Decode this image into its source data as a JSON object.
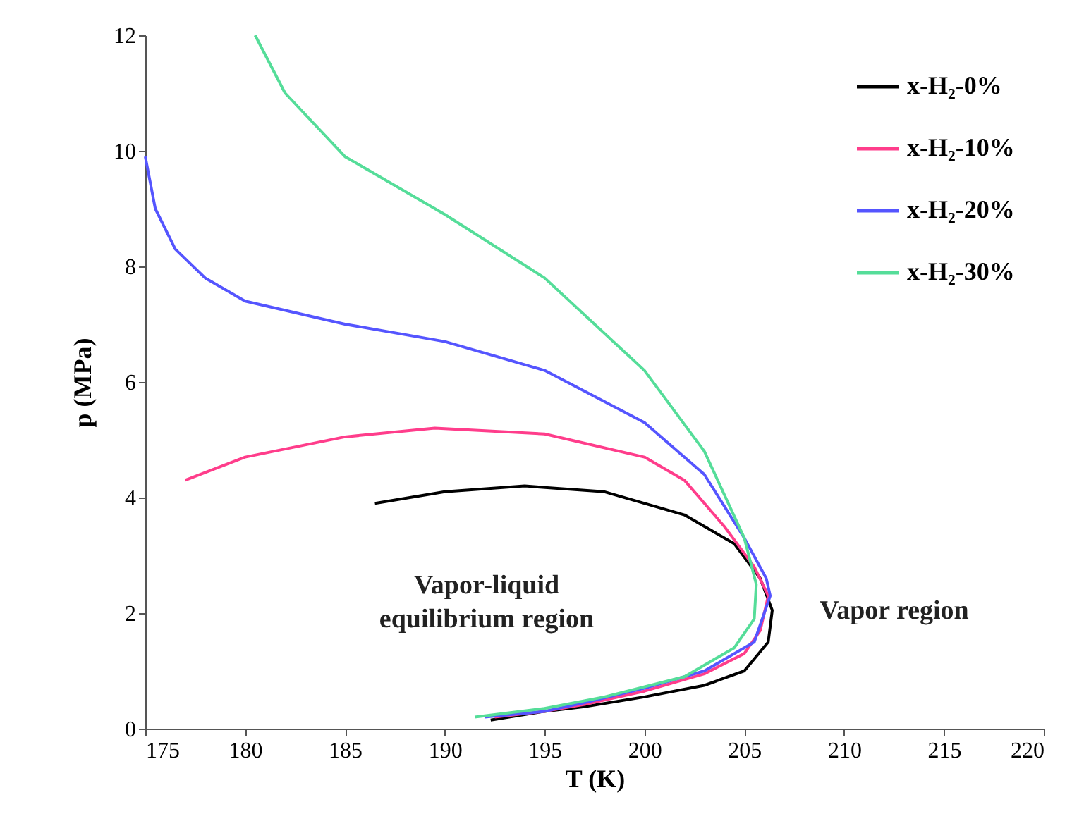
{
  "chart_data": {
    "type": "line",
    "xlabel": "T (K)",
    "ylabel": "p (MPa)",
    "xlim": [
      175,
      220
    ],
    "xticks": [
      175,
      180,
      185,
      190,
      195,
      200,
      205,
      210,
      215,
      220
    ],
    "ylim": [
      0,
      12
    ],
    "yticks": [
      0,
      2,
      4,
      6,
      8,
      10,
      12
    ],
    "grid": false,
    "legend": "top right",
    "line_style": "solid",
    "marker": "none",
    "annotations": [
      "Vapor-liquid\nequilibrium region",
      "Vapor region"
    ],
    "series": [
      {
        "name": "x-H₂-0%",
        "color": "#000000",
        "x": [
          186.5,
          190,
          194,
          198,
          202,
          204.5,
          205.8,
          206.4,
          206.2,
          205,
          203,
          200,
          197,
          195,
          192.3
        ],
        "values": [
          3.9,
          4.1,
          4.2,
          4.1,
          3.7,
          3.2,
          2.6,
          2.05,
          1.5,
          1.0,
          0.75,
          0.55,
          0.38,
          0.3,
          0.15
        ]
      },
      {
        "name": "x-H₂-10%",
        "color": "#ff3d8b",
        "x": [
          177,
          180,
          185,
          189.5,
          195,
          200,
          202,
          204,
          205.5,
          206.2,
          205.8,
          205,
          203,
          200,
          197,
          195,
          192.5
        ],
        "values": [
          4.3,
          4.7,
          5.05,
          5.2,
          5.1,
          4.7,
          4.3,
          3.5,
          2.8,
          2.3,
          1.7,
          1.3,
          0.95,
          0.65,
          0.42,
          0.3,
          0.2
        ]
      },
      {
        "name": "x-H₂-20%",
        "color": "#5555ff",
        "x": [
          175,
          175.5,
          176.5,
          178,
          180,
          185,
          190,
          195,
          200,
          203,
          205,
          206.1,
          206.3,
          205.5,
          203,
          200,
          197,
          195,
          192
        ],
        "values": [
          9.9,
          9.0,
          8.3,
          7.8,
          7.4,
          7.0,
          6.7,
          6.2,
          5.3,
          4.4,
          3.3,
          2.6,
          2.3,
          1.5,
          1.0,
          0.7,
          0.45,
          0.3,
          0.2
        ]
      },
      {
        "name": "x-H₂-30%",
        "color": "#55dd99",
        "x": [
          180.5,
          182,
          185,
          190,
          195,
          200,
          203,
          205,
          205.6,
          205.5,
          204.5,
          202,
          198,
          195,
          191.5
        ],
        "values": [
          12,
          11,
          9.9,
          8.9,
          7.8,
          6.2,
          4.8,
          3.3,
          2.5,
          1.9,
          1.4,
          0.9,
          0.55,
          0.35,
          0.2
        ]
      }
    ]
  }
}
